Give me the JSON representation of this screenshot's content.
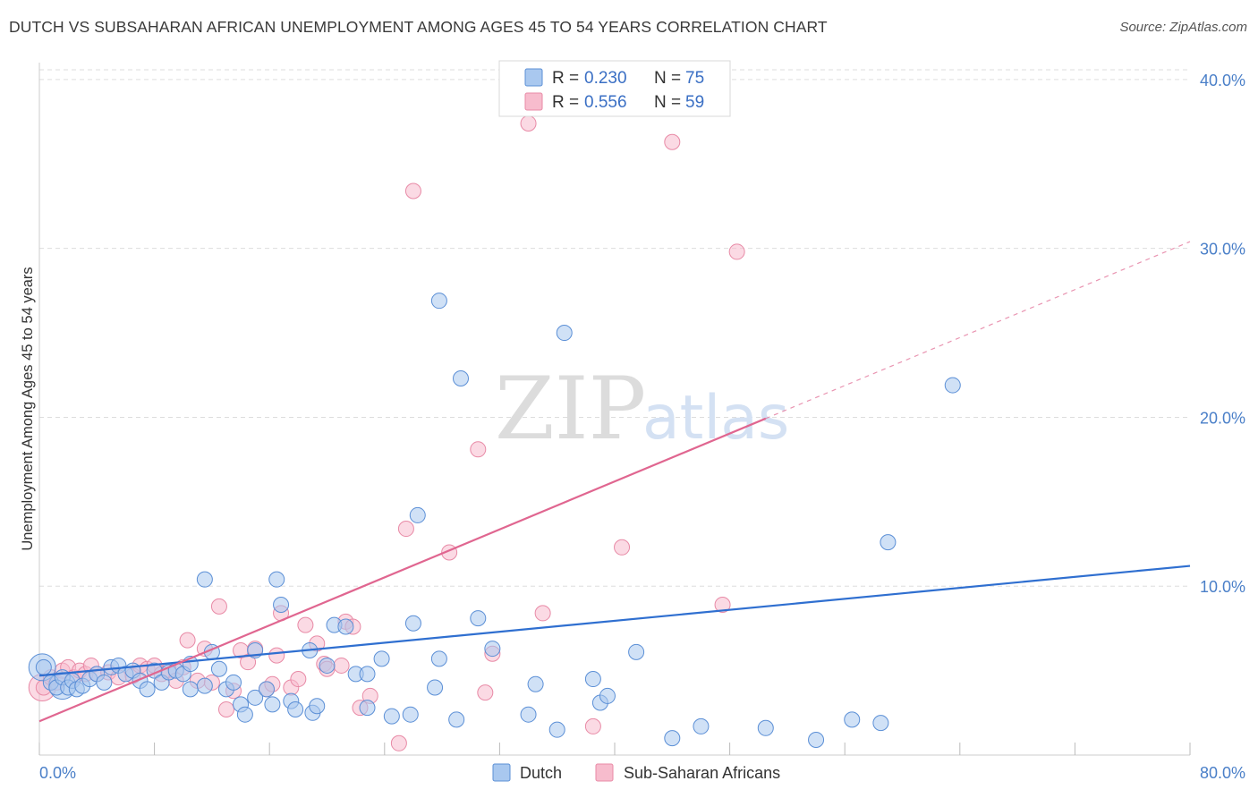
{
  "header": {
    "title": "DUTCH VS SUBSAHARAN AFRICAN UNEMPLOYMENT AMONG AGES 45 TO 54 YEARS CORRELATION CHART",
    "source": "Source: ZipAtlas.com"
  },
  "watermark": {
    "zip": "ZIP",
    "atlas": "atlas"
  },
  "colors": {
    "dutch_fill": "#a9c8ef",
    "dutch_stroke": "#5b8fd6",
    "dutch_line": "#2f6fd0",
    "african_fill": "#f7bccd",
    "african_stroke": "#e88aa6",
    "african_line": "#e06690",
    "grid": "#dddddd",
    "tick_text": "#4a7fc8"
  },
  "chart_data": {
    "type": "scatter",
    "title": "DUTCH VS SUBSAHARAN AFRICAN UNEMPLOYMENT AMONG AGES 45 TO 54 YEARS CORRELATION CHART",
    "xlabel": "",
    "ylabel": "Unemployment Among Ages 45 to 54 years",
    "xlim": [
      0,
      80
    ],
    "ylim": [
      0,
      41
    ],
    "x_tick_labels": [
      "0.0%",
      "80.0%"
    ],
    "y_ticks": [
      10,
      20,
      30,
      40
    ],
    "y_tick_labels": [
      "10.0%",
      "20.0%",
      "30.0%",
      "40.0%"
    ],
    "grid": true,
    "legend": [
      {
        "label": "R = ",
        "r": "0.230",
        "n_label": "N = ",
        "n": "75"
      },
      {
        "label": "R = ",
        "r": "0.556",
        "n_label": "N = ",
        "n": "59"
      }
    ],
    "series": [
      {
        "name": "Dutch",
        "trend": {
          "x": [
            0,
            80
          ],
          "y": [
            4.7,
            11.2
          ],
          "dashed_from": null
        },
        "points": [
          [
            0.3,
            5.2
          ],
          [
            0.8,
            4.3
          ],
          [
            1.2,
            4.0
          ],
          [
            1.6,
            4.6
          ],
          [
            2.0,
            4.0
          ],
          [
            2.3,
            4.4
          ],
          [
            2.6,
            3.9
          ],
          [
            3.0,
            4.1
          ],
          [
            3.5,
            4.5
          ],
          [
            4.0,
            4.8
          ],
          [
            4.5,
            4.3
          ],
          [
            5.0,
            5.2
          ],
          [
            5.5,
            5.3
          ],
          [
            6.0,
            4.8
          ],
          [
            6.5,
            5.0
          ],
          [
            7.0,
            4.4
          ],
          [
            7.5,
            3.9
          ],
          [
            8.0,
            5.0
          ],
          [
            8.5,
            4.3
          ],
          [
            9.0,
            4.9
          ],
          [
            9.5,
            5.0
          ],
          [
            10.0,
            4.8
          ],
          [
            10.5,
            5.4
          ],
          [
            10.5,
            3.9
          ],
          [
            11.5,
            4.1
          ],
          [
            11.5,
            10.4
          ],
          [
            12.0,
            6.1
          ],
          [
            12.5,
            5.1
          ],
          [
            13.0,
            3.9
          ],
          [
            13.5,
            4.3
          ],
          [
            14.0,
            3.0
          ],
          [
            14.3,
            2.4
          ],
          [
            15.0,
            6.2
          ],
          [
            15.0,
            3.4
          ],
          [
            15.8,
            3.9
          ],
          [
            16.2,
            3.0
          ],
          [
            16.5,
            10.4
          ],
          [
            16.8,
            8.9
          ],
          [
            17.5,
            3.2
          ],
          [
            17.8,
            2.7
          ],
          [
            18.8,
            6.2
          ],
          [
            19.0,
            2.5
          ],
          [
            19.3,
            2.9
          ],
          [
            20.0,
            5.3
          ],
          [
            20.5,
            7.7
          ],
          [
            21.3,
            7.6
          ],
          [
            22.0,
            4.8
          ],
          [
            22.8,
            4.8
          ],
          [
            22.8,
            2.8
          ],
          [
            23.8,
            5.7
          ],
          [
            24.5,
            2.3
          ],
          [
            25.8,
            2.4
          ],
          [
            26.0,
            7.8
          ],
          [
            26.3,
            14.2
          ],
          [
            27.5,
            4.0
          ],
          [
            27.8,
            5.7
          ],
          [
            27.8,
            26.9
          ],
          [
            29.0,
            2.1
          ],
          [
            29.3,
            22.3
          ],
          [
            30.5,
            8.1
          ],
          [
            31.5,
            6.3
          ],
          [
            34.0,
            2.4
          ],
          [
            34.5,
            4.2
          ],
          [
            36.0,
            1.5
          ],
          [
            36.5,
            25.0
          ],
          [
            38.5,
            4.5
          ],
          [
            39.0,
            3.1
          ],
          [
            39.5,
            3.5
          ],
          [
            41.5,
            6.1
          ],
          [
            44.0,
            1.0
          ],
          [
            46.0,
            1.7
          ],
          [
            50.5,
            1.6
          ],
          [
            54.0,
            0.9
          ],
          [
            56.5,
            2.1
          ],
          [
            58.5,
            1.9
          ],
          [
            59.0,
            12.6
          ],
          [
            63.5,
            21.9
          ]
        ],
        "big_points": [
          [
            0.2,
            5.2
          ],
          [
            1.6,
            4.1
          ]
        ]
      },
      {
        "name": "Sub-Saharan Africans",
        "trend": {
          "x": [
            0,
            80
          ],
          "y": [
            2.0,
            30.4
          ],
          "dashed_from": 50.5
        },
        "points": [
          [
            0.3,
            4.0
          ],
          [
            0.8,
            4.6
          ],
          [
            1.2,
            4.3
          ],
          [
            1.6,
            5.0
          ],
          [
            2.0,
            5.2
          ],
          [
            2.4,
            4.6
          ],
          [
            2.8,
            5.0
          ],
          [
            3.2,
            4.8
          ],
          [
            3.6,
            5.3
          ],
          [
            4.0,
            4.8
          ],
          [
            4.8,
            4.9
          ],
          [
            5.5,
            4.6
          ],
          [
            6.5,
            4.7
          ],
          [
            7.0,
            5.3
          ],
          [
            7.5,
            5.1
          ],
          [
            8.0,
            5.3
          ],
          [
            8.5,
            4.8
          ],
          [
            9.0,
            5.0
          ],
          [
            9.5,
            4.4
          ],
          [
            10.0,
            5.2
          ],
          [
            10.3,
            6.8
          ],
          [
            11.0,
            4.4
          ],
          [
            11.5,
            6.3
          ],
          [
            12.0,
            4.3
          ],
          [
            12.5,
            8.8
          ],
          [
            13.0,
            2.7
          ],
          [
            13.5,
            3.8
          ],
          [
            14.0,
            6.2
          ],
          [
            14.5,
            5.5
          ],
          [
            15.0,
            6.3
          ],
          [
            15.8,
            3.9
          ],
          [
            16.2,
            4.2
          ],
          [
            16.5,
            5.9
          ],
          [
            16.8,
            8.4
          ],
          [
            17.5,
            4.0
          ],
          [
            18.0,
            4.5
          ],
          [
            18.5,
            7.7
          ],
          [
            19.3,
            6.6
          ],
          [
            19.8,
            5.4
          ],
          [
            20.0,
            5.1
          ],
          [
            21.0,
            5.3
          ],
          [
            21.3,
            7.9
          ],
          [
            21.8,
            7.6
          ],
          [
            22.3,
            2.8
          ],
          [
            23.0,
            3.5
          ],
          [
            25.0,
            0.7
          ],
          [
            25.5,
            13.4
          ],
          [
            26.0,
            33.4
          ],
          [
            28.5,
            12.0
          ],
          [
            30.5,
            18.1
          ],
          [
            31.0,
            3.7
          ],
          [
            31.5,
            6.0
          ],
          [
            34.0,
            37.4
          ],
          [
            35.0,
            8.4
          ],
          [
            38.5,
            1.7
          ],
          [
            40.5,
            12.3
          ],
          [
            44.0,
            36.3
          ],
          [
            47.5,
            8.9
          ],
          [
            48.5,
            29.8
          ]
        ],
        "big_points": [
          [
            0.2,
            4.0
          ]
        ]
      }
    ]
  },
  "bottom_legend": {
    "dutch": "Dutch",
    "african": "Sub-Saharan Africans"
  }
}
